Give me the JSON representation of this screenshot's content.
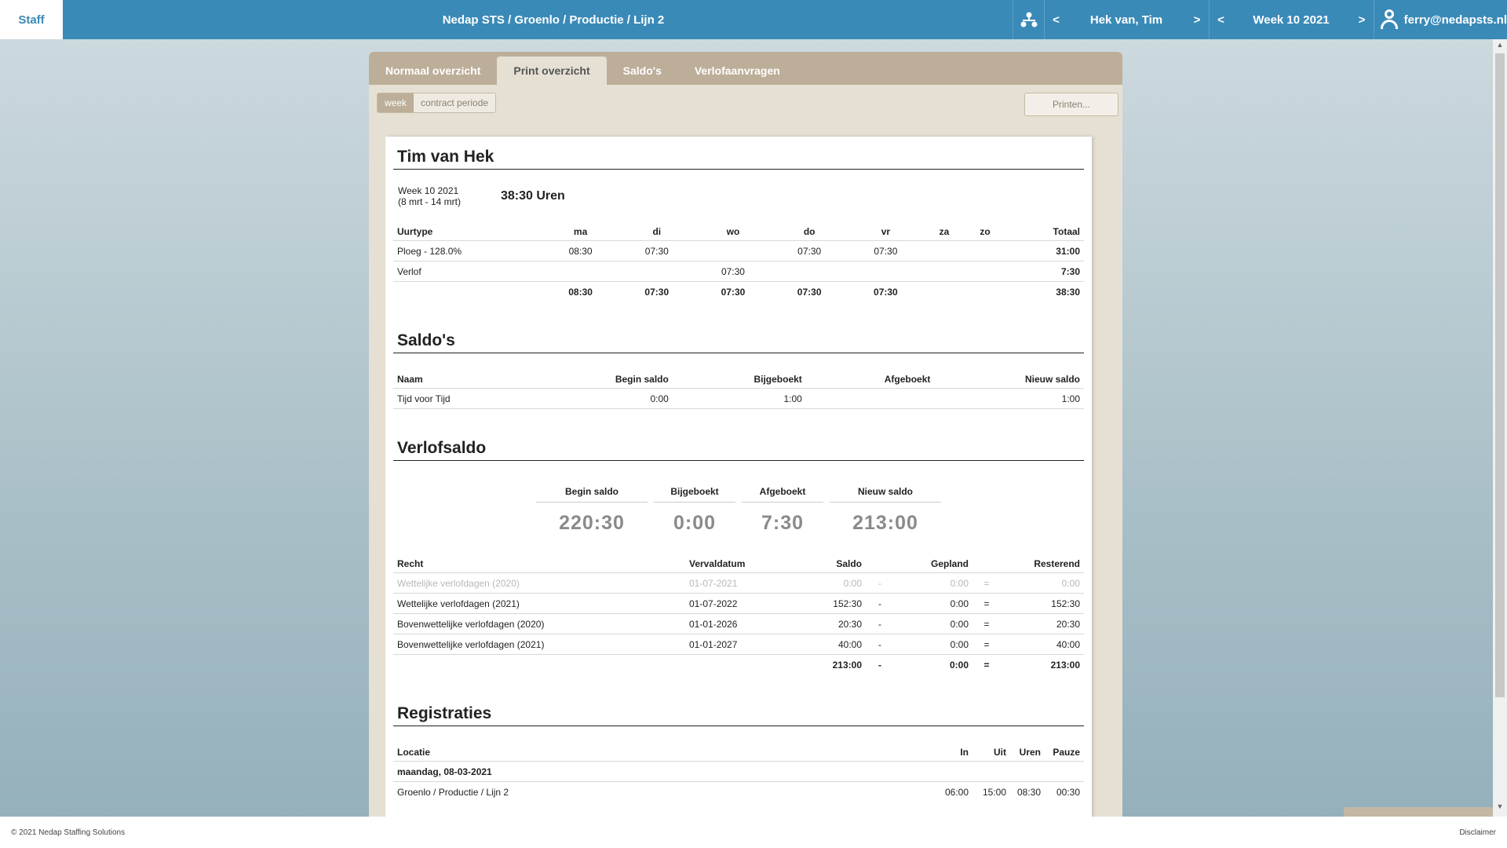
{
  "topbar": {
    "brand": "Staff",
    "breadcrumb": "Nedap STS / Groenlo / Productie / Lijn 2",
    "employee": "Hek van, Tim",
    "week": "Week 10 2021",
    "prev": "<",
    "next": ">",
    "user": "ferry@nedapsts.nl"
  },
  "tabs": [
    {
      "label": "Normaal overzicht"
    },
    {
      "label": "Print overzicht"
    },
    {
      "label": "Saldo's"
    },
    {
      "label": "Verlofaanvragen"
    }
  ],
  "toggle": {
    "week": "week",
    "period": "contract periode"
  },
  "print_label": "Printen...",
  "person": {
    "name": "Tim van Hek",
    "week_label": "Week 10 2021",
    "week_range": "(8 mrt - 14 mrt)",
    "total_hours": "38:30 Uren"
  },
  "hours_table": {
    "headers": [
      "Uurtype",
      "ma",
      "di",
      "wo",
      "do",
      "vr",
      "za",
      "zo",
      "Totaal"
    ],
    "rows": [
      [
        "Ploeg - 128.0%",
        "08:30",
        "07:30",
        "",
        "07:30",
        "07:30",
        "",
        "",
        "31:00"
      ],
      [
        "Verlof",
        "",
        "",
        "07:30",
        "",
        "",
        "",
        "",
        "7:30"
      ],
      [
        "",
        "08:30",
        "07:30",
        "07:30",
        "07:30",
        "07:30",
        "",
        "",
        "38:30"
      ]
    ]
  },
  "saldos": {
    "title": "Saldo's",
    "headers": [
      "Naam",
      "Begin saldo",
      "Bijgeboekt",
      "Afgeboekt",
      "Nieuw saldo"
    ],
    "rows": [
      [
        "Tijd voor Tijd",
        "0:00",
        "1:00",
        "",
        "1:00"
      ]
    ]
  },
  "verlof": {
    "title": "Verlofsaldo",
    "summary": [
      {
        "label": "Begin saldo",
        "value": "220:30"
      },
      {
        "label": "Bijgeboekt",
        "value": "0:00"
      },
      {
        "label": "Afgeboekt",
        "value": "7:30"
      },
      {
        "label": "Nieuw saldo",
        "value": "213:00"
      }
    ],
    "headers": [
      "Recht",
      "Vervaldatum",
      "Saldo",
      "",
      "Gepland",
      "",
      "Resterend"
    ],
    "rows": [
      [
        "Wettelijke verlofdagen (2020)",
        "01-07-2021",
        "0:00",
        "-",
        "0:00",
        "=",
        "0:00"
      ],
      [
        "Wettelijke verlofdagen (2021)",
        "01-07-2022",
        "152:30",
        "-",
        "0:00",
        "=",
        "152:30"
      ],
      [
        "Bovenwettelijke verlofdagen (2020)",
        "01-01-2026",
        "20:30",
        "-",
        "0:00",
        "=",
        "20:30"
      ],
      [
        "Bovenwettelijke verlofdagen (2021)",
        "01-01-2027",
        "40:00",
        "-",
        "0:00",
        "=",
        "40:00"
      ],
      [
        "",
        "",
        "213:00",
        "-",
        "0:00",
        "=",
        "213:00"
      ]
    ]
  },
  "registraties": {
    "title": "Registraties",
    "headers": [
      "Locatie",
      "In",
      "Uit",
      "Uren",
      "Pauze"
    ],
    "day": "maandag, 08-03-2021",
    "rows": [
      [
        "Groenlo / Productie / Lijn 2",
        "06:00",
        "15:00",
        "08:30",
        "00:30"
      ]
    ]
  },
  "footer": {
    "copyright": "© 2021 Nedap Staffing Solutions",
    "disclaimer": "Disclaimer"
  }
}
